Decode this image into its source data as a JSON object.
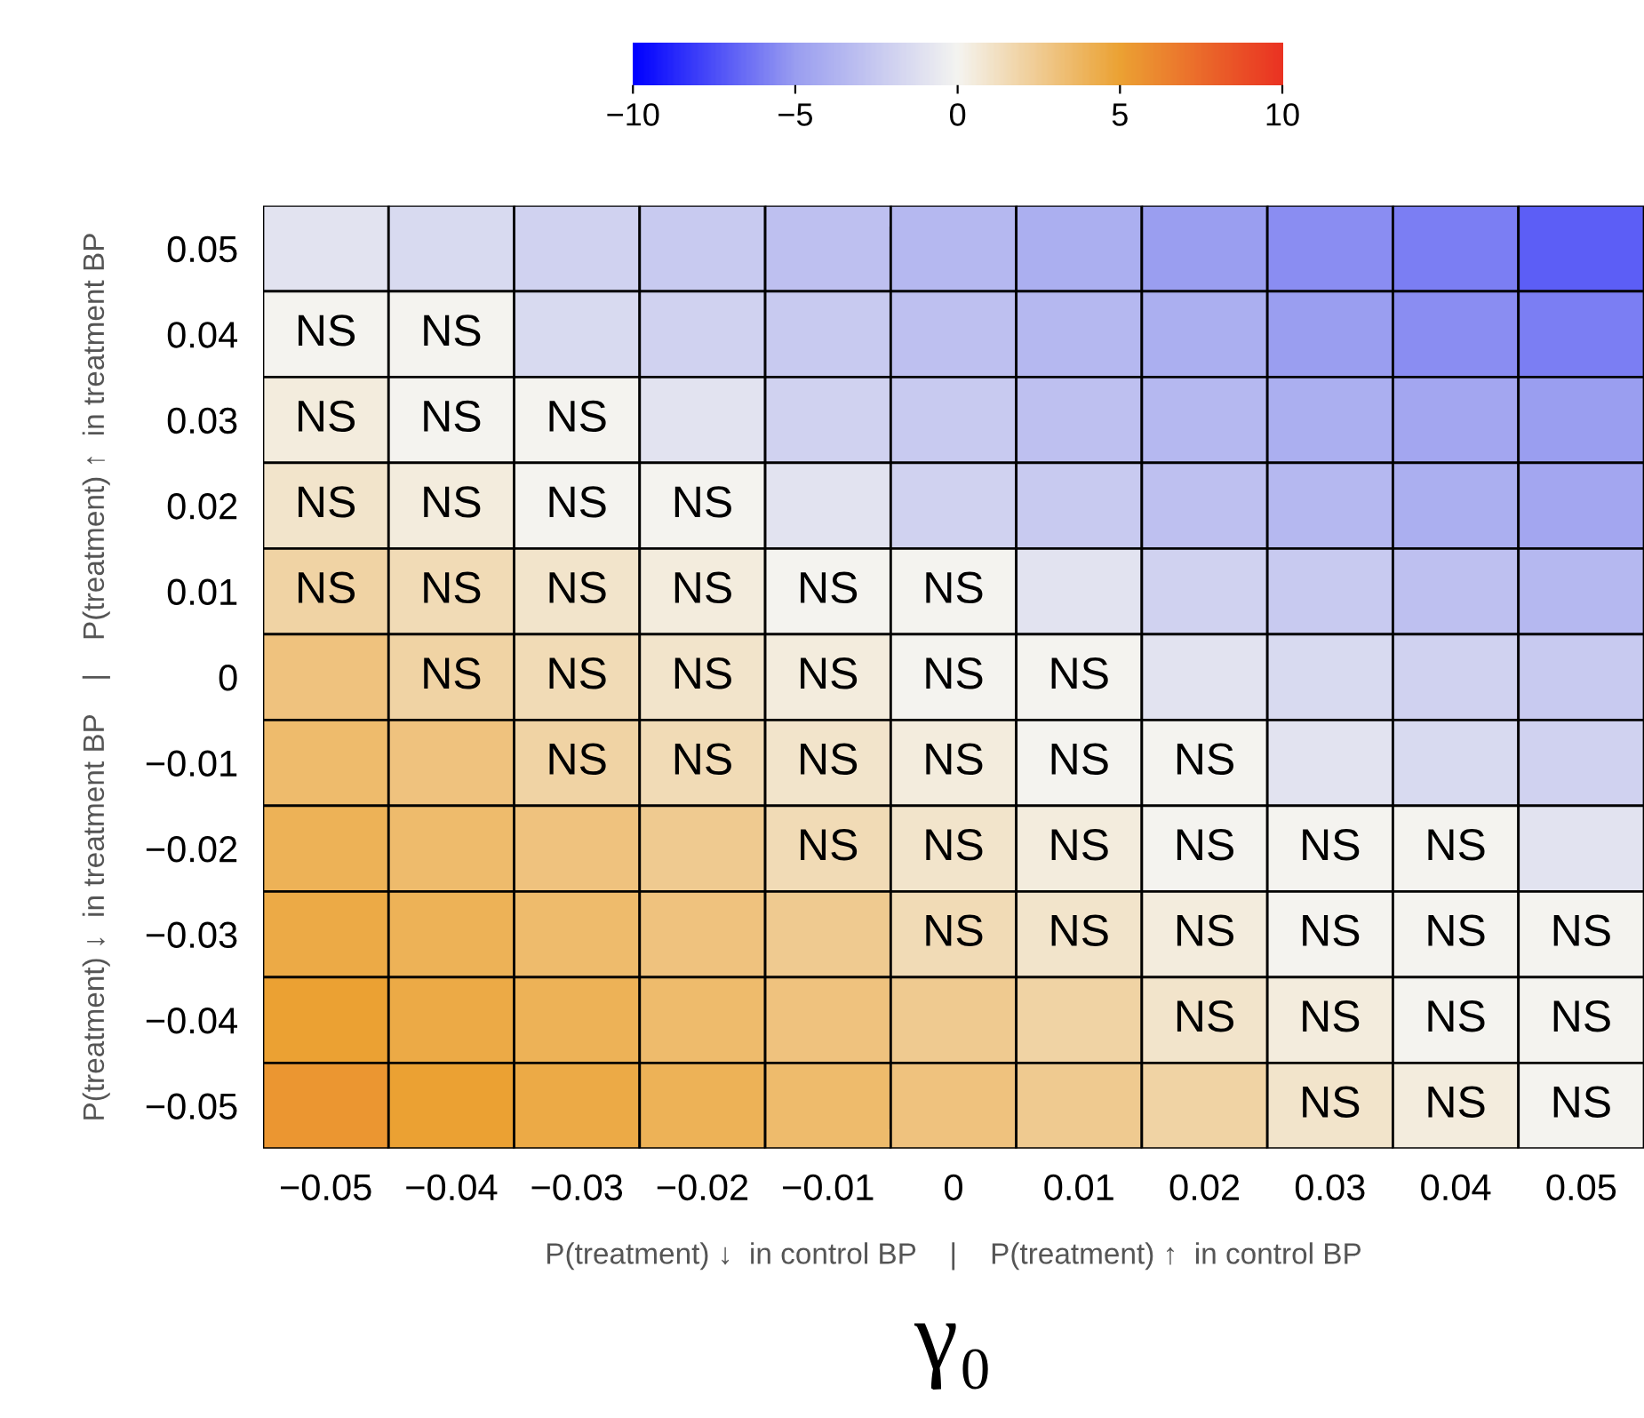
{
  "chart_data": {
    "type": "heatmap",
    "categories": [
      "−0.05",
      "−0.04",
      "−0.03",
      "−0.02",
      "−0.01",
      "0",
      "0.01",
      "0.02",
      "0.03",
      "0.04",
      "0.05"
    ],
    "y_categories": [
      "0.05",
      "0.04",
      "0.03",
      "0.02",
      "0.01",
      "0",
      "−0.01",
      "−0.02",
      "−0.03",
      "−0.04",
      "−0.05"
    ],
    "cells": [
      [
        -1,
        -1.5,
        -2,
        -2.5,
        -3,
        -3.5,
        -4,
        -5,
        -5.5,
        -6,
        -7
      ],
      [
        0,
        0,
        -1.5,
        -2,
        -2.5,
        -3,
        -3.5,
        -4,
        -5,
        -5.5,
        -6
      ],
      [
        0.5,
        0,
        0,
        -1,
        -2,
        -2.5,
        -3,
        -3.5,
        -4,
        -4.5,
        -5
      ],
      [
        1,
        0.5,
        0,
        0,
        -1,
        -2,
        -2.5,
        -3,
        -3.5,
        -4,
        -4.5
      ],
      [
        2,
        1.5,
        1,
        0.5,
        0,
        0,
        -1,
        -2,
        -2.5,
        -3,
        -3.5
      ],
      [
        3,
        2,
        1.5,
        1,
        0.5,
        0,
        0,
        -1,
        -1.5,
        -2,
        -2.5
      ],
      [
        3.5,
        3,
        2,
        1.5,
        1,
        0.5,
        0,
        0,
        -1,
        -1.5,
        -2
      ],
      [
        4,
        3.5,
        3,
        2.5,
        1.5,
        1,
        0.5,
        0,
        0,
        0,
        -1
      ],
      [
        4.5,
        4,
        3.5,
        3,
        2.5,
        1.5,
        1,
        0.5,
        0,
        0,
        0
      ],
      [
        5,
        4.5,
        4,
        3.5,
        3,
        2.5,
        2,
        1,
        0.5,
        0,
        0
      ],
      [
        5.5,
        5,
        4.5,
        4,
        3.5,
        3,
        2.5,
        2,
        1,
        0.5,
        0
      ]
    ],
    "cell_labels": [
      [
        null,
        null,
        null,
        null,
        null,
        null,
        null,
        null,
        null,
        null,
        null
      ],
      [
        "NS",
        "NS",
        null,
        null,
        null,
        null,
        null,
        null,
        null,
        null,
        null
      ],
      [
        "NS",
        "NS",
        "NS",
        null,
        null,
        null,
        null,
        null,
        null,
        null,
        null
      ],
      [
        "NS",
        "NS",
        "NS",
        "NS",
        null,
        null,
        null,
        null,
        null,
        null,
        null
      ],
      [
        "NS",
        "NS",
        "NS",
        "NS",
        "NS",
        "NS",
        null,
        null,
        null,
        null,
        null
      ],
      [
        null,
        "NS",
        "NS",
        "NS",
        "NS",
        "NS",
        "NS",
        null,
        null,
        null,
        null
      ],
      [
        null,
        null,
        "NS",
        "NS",
        "NS",
        "NS",
        "NS",
        "NS",
        null,
        null,
        null
      ],
      [
        null,
        null,
        null,
        null,
        "NS",
        "NS",
        "NS",
        "NS",
        "NS",
        "NS",
        null
      ],
      [
        null,
        null,
        null,
        null,
        null,
        "NS",
        "NS",
        "NS",
        "NS",
        "NS",
        "NS"
      ],
      [
        null,
        null,
        null,
        null,
        null,
        null,
        null,
        "NS",
        "NS",
        "NS",
        "NS"
      ],
      [
        null,
        null,
        null,
        null,
        null,
        null,
        null,
        null,
        "NS",
        "NS",
        "NS"
      ]
    ],
    "clim": [
      -10,
      10
    ],
    "cticks": [
      {
        "value": -10,
        "label": "−10"
      },
      {
        "value": -5,
        "label": "−5"
      },
      0,
      5,
      10
    ],
    "xlabel": "P(treatment) ↓  in control BP    |    P(treatment) ↑  in control BP",
    "ylabel": "P(treatment) ↓  in treatment BP    |    P(treatment) ↑  in treatment BP",
    "annotations": [
      "γ₀"
    ]
  }
}
